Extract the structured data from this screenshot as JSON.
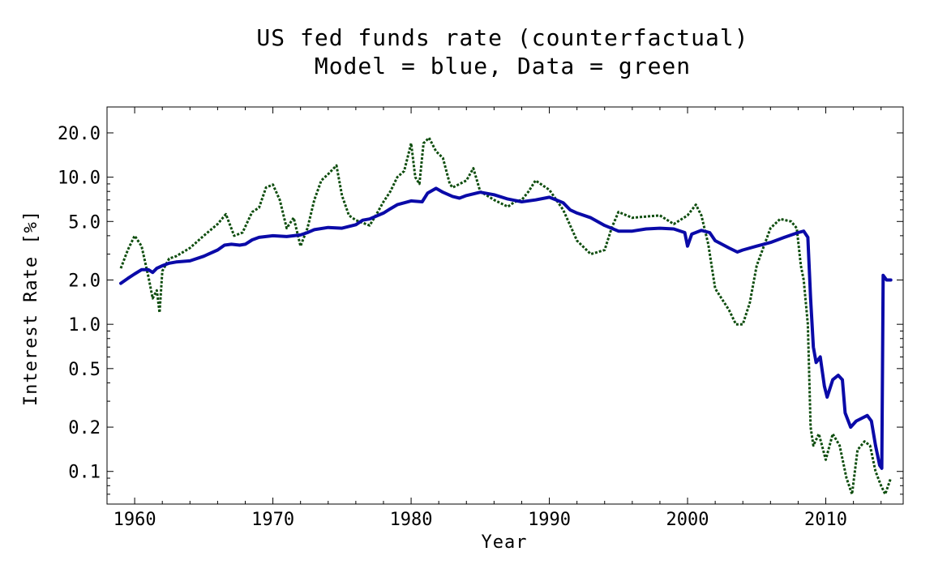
{
  "chart_data": {
    "type": "line",
    "title": "US fed funds rate (counterfactual)",
    "subtitle": "Model = blue, Data = green",
    "xlabel": "Year",
    "ylabel": "Interest Rate [%]",
    "xlim": [
      1958.0,
      2015.6
    ],
    "ylim": [
      0.06,
      30
    ],
    "yscale": "log",
    "grid": false,
    "x_ticks": [
      1960,
      1970,
      1980,
      1990,
      2000,
      2010
    ],
    "x_tick_labels": [
      "1960",
      "1970",
      "1980",
      "1990",
      "2000",
      "2010"
    ],
    "y_ticks": [
      0.1,
      0.2,
      0.5,
      1.0,
      2.0,
      5.0,
      10.0,
      20.0
    ],
    "y_tick_labels": [
      "0.1",
      "0.2",
      "0.5",
      "1.0",
      "2.0",
      "5.0",
      "10.0",
      "20.0"
    ],
    "series": [
      {
        "color": "#0a0aa8",
        "style": "solid",
        "points": [
          [
            1959.0,
            1.9
          ],
          [
            1959.5,
            2.05
          ],
          [
            1960.0,
            2.2
          ],
          [
            1960.5,
            2.35
          ],
          [
            1961.0,
            2.35
          ],
          [
            1961.3,
            2.25
          ],
          [
            1961.6,
            2.4
          ],
          [
            1962.0,
            2.5
          ],
          [
            1962.5,
            2.6
          ],
          [
            1963.0,
            2.65
          ],
          [
            1964.0,
            2.7
          ],
          [
            1965.0,
            2.9
          ],
          [
            1966.0,
            3.2
          ],
          [
            1966.5,
            3.45
          ],
          [
            1967.0,
            3.5
          ],
          [
            1967.6,
            3.45
          ],
          [
            1968.0,
            3.5
          ],
          [
            1968.5,
            3.75
          ],
          [
            1969.0,
            3.9
          ],
          [
            1970.0,
            4.0
          ],
          [
            1971.0,
            3.95
          ],
          [
            1971.5,
            4.0
          ],
          [
            1972.0,
            4.05
          ],
          [
            1972.5,
            4.2
          ],
          [
            1973.0,
            4.4
          ],
          [
            1974.0,
            4.55
          ],
          [
            1975.0,
            4.5
          ],
          [
            1976.0,
            4.75
          ],
          [
            1976.5,
            5.1
          ],
          [
            1977.0,
            5.2
          ],
          [
            1978.0,
            5.7
          ],
          [
            1978.5,
            6.1
          ],
          [
            1979.0,
            6.5
          ],
          [
            1980.0,
            6.9
          ],
          [
            1980.8,
            6.8
          ],
          [
            1981.2,
            7.8
          ],
          [
            1981.8,
            8.4
          ],
          [
            1982.3,
            7.9
          ],
          [
            1983.0,
            7.4
          ],
          [
            1983.5,
            7.2
          ],
          [
            1984.0,
            7.5
          ],
          [
            1985.0,
            7.9
          ],
          [
            1986.0,
            7.6
          ],
          [
            1987.0,
            7.1
          ],
          [
            1988.0,
            6.8
          ],
          [
            1989.0,
            7.0
          ],
          [
            1990.0,
            7.3
          ],
          [
            1990.5,
            7.0
          ],
          [
            1991.0,
            6.7
          ],
          [
            1991.5,
            6.0
          ],
          [
            1992.0,
            5.7
          ],
          [
            1993.0,
            5.3
          ],
          [
            1994.0,
            4.7
          ],
          [
            1995.0,
            4.3
          ],
          [
            1996.0,
            4.3
          ],
          [
            1997.0,
            4.45
          ],
          [
            1998.0,
            4.5
          ],
          [
            1999.0,
            4.45
          ],
          [
            1999.8,
            4.2
          ],
          [
            2000.0,
            3.4
          ],
          [
            2000.3,
            4.1
          ],
          [
            2001.0,
            4.35
          ],
          [
            2001.6,
            4.2
          ],
          [
            2002.0,
            3.7
          ],
          [
            2003.0,
            3.3
          ],
          [
            2003.6,
            3.1
          ],
          [
            2004.0,
            3.2
          ],
          [
            2005.0,
            3.4
          ],
          [
            2006.0,
            3.6
          ],
          [
            2007.0,
            3.9
          ],
          [
            2008.0,
            4.2
          ],
          [
            2008.4,
            4.3
          ],
          [
            2008.7,
            3.9
          ],
          [
            2008.9,
            1.5
          ],
          [
            2009.1,
            0.7
          ],
          [
            2009.3,
            0.55
          ],
          [
            2009.6,
            0.6
          ],
          [
            2009.9,
            0.38
          ],
          [
            2010.1,
            0.32
          ],
          [
            2010.5,
            0.42
          ],
          [
            2010.9,
            0.45
          ],
          [
            2011.2,
            0.42
          ],
          [
            2011.4,
            0.25
          ],
          [
            2011.8,
            0.2
          ],
          [
            2012.2,
            0.22
          ],
          [
            2012.6,
            0.23
          ],
          [
            2013.0,
            0.24
          ],
          [
            2013.3,
            0.22
          ],
          [
            2013.6,
            0.15
          ],
          [
            2013.9,
            0.11
          ],
          [
            2014.05,
            0.105
          ],
          [
            2014.15,
            2.15
          ],
          [
            2014.4,
            2.0
          ],
          [
            2014.7,
            2.0
          ]
        ]
      },
      {
        "color": "#0e4d0e",
        "style": "dotted",
        "points": [
          [
            1959.0,
            2.4
          ],
          [
            1959.5,
            3.2
          ],
          [
            1960.0,
            4.0
          ],
          [
            1960.5,
            3.4
          ],
          [
            1961.0,
            2.1
          ],
          [
            1961.3,
            1.5
          ],
          [
            1961.6,
            1.7
          ],
          [
            1961.8,
            1.2
          ],
          [
            1962.0,
            2.3
          ],
          [
            1962.5,
            2.8
          ],
          [
            1963.0,
            2.9
          ],
          [
            1964.0,
            3.3
          ],
          [
            1965.0,
            4.0
          ],
          [
            1966.0,
            4.8
          ],
          [
            1966.6,
            5.6
          ],
          [
            1967.2,
            4.0
          ],
          [
            1967.8,
            4.2
          ],
          [
            1968.5,
            5.8
          ],
          [
            1969.0,
            6.2
          ],
          [
            1969.5,
            8.5
          ],
          [
            1970.0,
            8.9
          ],
          [
            1970.5,
            7.0
          ],
          [
            1971.0,
            4.5
          ],
          [
            1971.5,
            5.3
          ],
          [
            1972.0,
            3.4
          ],
          [
            1972.5,
            4.5
          ],
          [
            1973.0,
            7.0
          ],
          [
            1973.5,
            9.5
          ],
          [
            1974.0,
            10.5
          ],
          [
            1974.6,
            12.0
          ],
          [
            1975.0,
            7.5
          ],
          [
            1975.5,
            5.5
          ],
          [
            1976.0,
            5.1
          ],
          [
            1977.0,
            4.7
          ],
          [
            1977.5,
            5.6
          ],
          [
            1978.0,
            6.8
          ],
          [
            1978.5,
            8.0
          ],
          [
            1979.0,
            10.0
          ],
          [
            1979.5,
            11.0
          ],
          [
            1980.0,
            17.0
          ],
          [
            1980.3,
            10.0
          ],
          [
            1980.6,
            9.0
          ],
          [
            1980.9,
            17.0
          ],
          [
            1981.3,
            18.5
          ],
          [
            1981.8,
            15.0
          ],
          [
            1982.3,
            13.5
          ],
          [
            1982.8,
            9.0
          ],
          [
            1983.0,
            8.5
          ],
          [
            1984.0,
            9.5
          ],
          [
            1984.5,
            11.5
          ],
          [
            1985.0,
            8.0
          ],
          [
            1986.0,
            7.0
          ],
          [
            1987.0,
            6.3
          ],
          [
            1987.5,
            6.8
          ],
          [
            1988.0,
            7.0
          ],
          [
            1988.5,
            8.0
          ],
          [
            1989.0,
            9.5
          ],
          [
            1990.0,
            8.2
          ],
          [
            1991.0,
            6.0
          ],
          [
            1992.0,
            3.7
          ],
          [
            1993.0,
            3.0
          ],
          [
            1994.0,
            3.2
          ],
          [
            1994.5,
            4.5
          ],
          [
            1995.0,
            5.8
          ],
          [
            1996.0,
            5.3
          ],
          [
            1997.0,
            5.4
          ],
          [
            1998.0,
            5.5
          ],
          [
            1999.0,
            4.8
          ],
          [
            2000.0,
            5.5
          ],
          [
            2000.6,
            6.5
          ],
          [
            2001.0,
            5.5
          ],
          [
            2001.5,
            3.5
          ],
          [
            2002.0,
            1.75
          ],
          [
            2003.0,
            1.25
          ],
          [
            2003.5,
            1.0
          ],
          [
            2004.0,
            1.0
          ],
          [
            2004.5,
            1.4
          ],
          [
            2005.0,
            2.5
          ],
          [
            2006.0,
            4.5
          ],
          [
            2006.7,
            5.2
          ],
          [
            2007.5,
            5.0
          ],
          [
            2007.9,
            4.5
          ],
          [
            2008.2,
            2.5
          ],
          [
            2008.4,
            2.0
          ],
          [
            2008.7,
            1.0
          ],
          [
            2008.9,
            0.2
          ],
          [
            2009.1,
            0.15
          ],
          [
            2009.5,
            0.18
          ],
          [
            2010.0,
            0.12
          ],
          [
            2010.5,
            0.18
          ],
          [
            2011.0,
            0.15
          ],
          [
            2011.5,
            0.09
          ],
          [
            2011.9,
            0.07
          ],
          [
            2012.3,
            0.14
          ],
          [
            2012.8,
            0.16
          ],
          [
            2013.2,
            0.15
          ],
          [
            2013.6,
            0.1
          ],
          [
            2014.0,
            0.08
          ],
          [
            2014.3,
            0.07
          ],
          [
            2014.7,
            0.09
          ]
        ]
      }
    ]
  }
}
